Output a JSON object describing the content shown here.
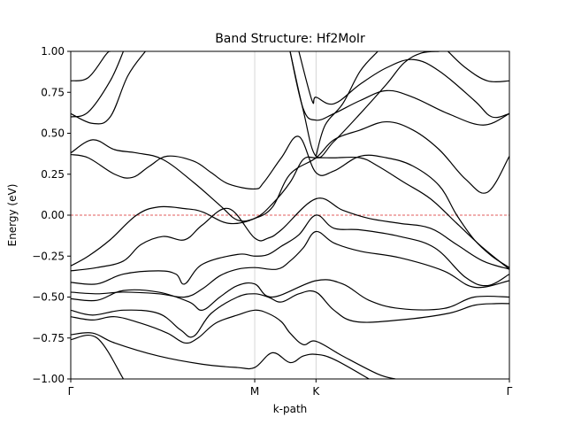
{
  "chart_data": {
    "type": "line",
    "title": "Band Structure: Hf2MoIr",
    "xlabel": "k-path",
    "ylabel": "Energy (eV)",
    "ylim": [
      -1.0,
      1.0
    ],
    "xlim": [
      0,
      1
    ],
    "y_ticks": [
      -1.0,
      -0.75,
      -0.5,
      -0.25,
      0.0,
      0.25,
      0.5,
      0.75,
      1.0
    ],
    "y_tick_labels": [
      "−1.00",
      "−0.75",
      "−0.50",
      "−0.25",
      "0.00",
      "0.25",
      "0.50",
      "0.75",
      "1.00"
    ],
    "kpoints": [
      {
        "label": "Γ",
        "x": 0.0
      },
      {
        "label": "M",
        "x": 0.4194
      },
      {
        "label": "K",
        "x": 0.5591
      },
      {
        "label": "Γ",
        "x": 1.0
      }
    ],
    "fermi_level": 0.0,
    "fermi_color": "#d62728",
    "line_color": "#000000",
    "vline_color": "#cccccc",
    "series": [
      {
        "values": [
          [
            0.0,
            -0.76
          ],
          [
            0.06,
            -0.75
          ],
          [
            0.12,
            -1.0
          ]
        ]
      },
      {
        "values": [
          [
            0.0,
            -0.73
          ],
          [
            0.05,
            -0.72
          ],
          [
            0.1,
            -0.78
          ],
          [
            0.2,
            -0.86
          ],
          [
            0.3,
            -0.91
          ],
          [
            0.38,
            -0.93
          ],
          [
            0.4194,
            -0.93
          ],
          [
            0.46,
            -0.84
          ],
          [
            0.5,
            -0.9
          ],
          [
            0.53,
            -0.86
          ],
          [
            0.5591,
            -0.85
          ],
          [
            0.6,
            -0.88
          ],
          [
            0.68,
            -1.0
          ]
        ]
      },
      {
        "values": [
          [
            0.0,
            -0.62
          ],
          [
            0.05,
            -0.64
          ],
          [
            0.1,
            -0.62
          ],
          [
            0.16,
            -0.66
          ],
          [
            0.22,
            -0.72
          ],
          [
            0.26,
            -0.78
          ],
          [
            0.29,
            -0.75
          ],
          [
            0.33,
            -0.66
          ],
          [
            0.38,
            -0.61
          ],
          [
            0.4194,
            -0.58
          ],
          [
            0.45,
            -0.6
          ],
          [
            0.48,
            -0.65
          ],
          [
            0.5,
            -0.72
          ],
          [
            0.53,
            -0.79
          ],
          [
            0.5591,
            -0.77
          ],
          [
            0.62,
            -0.86
          ],
          [
            0.7,
            -0.97
          ],
          [
            0.74,
            -1.0
          ]
        ]
      },
      {
        "values": [
          [
            0.0,
            -0.58
          ],
          [
            0.05,
            -0.61
          ],
          [
            0.12,
            -0.58
          ],
          [
            0.2,
            -0.6
          ],
          [
            0.25,
            -0.7
          ],
          [
            0.28,
            -0.74
          ],
          [
            0.32,
            -0.6
          ],
          [
            0.38,
            -0.5
          ],
          [
            0.4194,
            -0.48
          ],
          [
            0.45,
            -0.5
          ],
          [
            0.48,
            -0.53
          ],
          [
            0.52,
            -0.48
          ],
          [
            0.5591,
            -0.47
          ],
          [
            0.6,
            -0.58
          ],
          [
            0.65,
            -0.65
          ],
          [
            0.75,
            -0.64
          ],
          [
            0.86,
            -0.6
          ],
          [
            0.92,
            -0.55
          ],
          [
            0.97,
            -0.54
          ],
          [
            1.0,
            -0.54
          ]
        ]
      },
      {
        "values": [
          [
            0.0,
            -0.51
          ],
          [
            0.06,
            -0.52
          ],
          [
            0.12,
            -0.46
          ],
          [
            0.2,
            -0.47
          ],
          [
            0.27,
            -0.53
          ],
          [
            0.3,
            -0.58
          ],
          [
            0.34,
            -0.5
          ],
          [
            0.38,
            -0.43
          ],
          [
            0.4194,
            -0.42
          ],
          [
            0.46,
            -0.5
          ],
          [
            0.5591,
            -0.4
          ],
          [
            0.62,
            -0.42
          ],
          [
            0.68,
            -0.52
          ],
          [
            0.75,
            -0.57
          ],
          [
            0.85,
            -0.57
          ],
          [
            0.92,
            -0.5
          ],
          [
            1.0,
            -0.5
          ]
        ]
      },
      {
        "values": [
          [
            0.0,
            -0.47
          ],
          [
            0.06,
            -0.48
          ],
          [
            0.12,
            -0.47
          ],
          [
            0.2,
            -0.48
          ],
          [
            0.26,
            -0.5
          ],
          [
            0.3,
            -0.45
          ],
          [
            0.34,
            -0.37
          ],
          [
            0.38,
            -0.33
          ],
          [
            0.4194,
            -0.32
          ],
          [
            0.47,
            -0.33
          ],
          [
            0.5,
            -0.28
          ],
          [
            0.53,
            -0.2
          ],
          [
            0.5591,
            -0.1
          ],
          [
            0.6,
            -0.17
          ],
          [
            0.66,
            -0.22
          ],
          [
            0.75,
            -0.26
          ],
          [
            0.85,
            -0.34
          ],
          [
            0.92,
            -0.44
          ],
          [
            1.0,
            -0.4
          ]
        ]
      },
      {
        "values": [
          [
            0.0,
            -0.41
          ],
          [
            0.06,
            -0.42
          ],
          [
            0.12,
            -0.36
          ],
          [
            0.2,
            -0.34
          ],
          [
            0.24,
            -0.36
          ],
          [
            0.26,
            -0.42
          ],
          [
            0.3,
            -0.3
          ],
          [
            0.38,
            -0.24
          ],
          [
            0.4194,
            -0.25
          ],
          [
            0.45,
            -0.24
          ],
          [
            0.48,
            -0.19
          ],
          [
            0.52,
            -0.12
          ],
          [
            0.5591,
            0.0
          ],
          [
            0.6,
            -0.08
          ],
          [
            0.66,
            -0.09
          ],
          [
            0.75,
            -0.13
          ],
          [
            0.83,
            -0.2
          ],
          [
            0.9,
            -0.38
          ],
          [
            0.95,
            -0.43
          ],
          [
            1.0,
            -0.36
          ]
        ]
      },
      {
        "values": [
          [
            0.0,
            -0.34
          ],
          [
            0.06,
            -0.32
          ],
          [
            0.12,
            -0.28
          ],
          [
            0.16,
            -0.18
          ],
          [
            0.21,
            -0.13
          ],
          [
            0.26,
            -0.15
          ],
          [
            0.3,
            -0.06
          ],
          [
            0.36,
            0.04
          ],
          [
            0.4194,
            -0.14
          ],
          [
            0.45,
            -0.14
          ],
          [
            0.48,
            -0.09
          ],
          [
            0.5591,
            0.1
          ],
          [
            0.62,
            0.03
          ],
          [
            0.68,
            -0.02
          ],
          [
            0.75,
            -0.05
          ],
          [
            0.82,
            -0.08
          ],
          [
            0.88,
            -0.18
          ],
          [
            0.94,
            -0.28
          ],
          [
            1.0,
            -0.33
          ]
        ]
      },
      {
        "values": [
          [
            0.0,
            -0.31
          ],
          [
            0.04,
            -0.25
          ],
          [
            0.09,
            -0.15
          ],
          [
            0.15,
            0.0
          ],
          [
            0.2,
            0.05
          ],
          [
            0.26,
            0.04
          ],
          [
            0.3,
            0.02
          ],
          [
            0.36,
            -0.05
          ],
          [
            0.4194,
            -0.02
          ],
          [
            0.46,
            0.07
          ],
          [
            0.5,
            0.2
          ],
          [
            0.53,
            0.34
          ],
          [
            0.5591,
            0.35
          ],
          [
            0.6,
            0.35
          ],
          [
            0.66,
            0.35
          ],
          [
            0.7,
            0.3
          ],
          [
            0.76,
            0.2
          ],
          [
            0.82,
            0.1
          ],
          [
            0.88,
            -0.05
          ],
          [
            0.94,
            -0.2
          ],
          [
            1.0,
            -0.33
          ]
        ]
      },
      {
        "values": [
          [
            0.0,
            0.37
          ],
          [
            0.04,
            0.35
          ],
          [
            0.1,
            0.25
          ],
          [
            0.14,
            0.23
          ],
          [
            0.18,
            0.3
          ],
          [
            0.22,
            0.36
          ],
          [
            0.28,
            0.33
          ],
          [
            0.32,
            0.26
          ],
          [
            0.36,
            0.19
          ],
          [
            0.4194,
            0.16
          ],
          [
            0.44,
            0.2
          ],
          [
            0.48,
            0.35
          ],
          [
            0.52,
            0.48
          ],
          [
            0.5591,
            0.26
          ],
          [
            0.6,
            0.27
          ],
          [
            0.66,
            0.36
          ],
          [
            0.72,
            0.35
          ],
          [
            0.78,
            0.3
          ],
          [
            0.84,
            0.18
          ],
          [
            0.88,
            0.0
          ],
          [
            0.92,
            -0.15
          ],
          [
            0.96,
            -0.25
          ],
          [
            1.0,
            -0.32
          ]
        ]
      },
      {
        "values": [
          [
            0.0,
            0.38
          ],
          [
            0.05,
            0.46
          ],
          [
            0.1,
            0.4
          ],
          [
            0.15,
            0.38
          ],
          [
            0.21,
            0.34
          ],
          [
            0.28,
            0.2
          ],
          [
            0.34,
            0.06
          ],
          [
            0.38,
            -0.03
          ],
          [
            0.4194,
            -0.02
          ],
          [
            0.46,
            0.05
          ],
          [
            0.5,
            0.25
          ],
          [
            0.5591,
            0.35
          ],
          [
            0.6,
            0.46
          ],
          [
            0.66,
            0.52
          ],
          [
            0.72,
            0.57
          ],
          [
            0.78,
            0.52
          ],
          [
            0.84,
            0.4
          ],
          [
            0.9,
            0.22
          ],
          [
            0.95,
            0.14
          ],
          [
            1.0,
            0.36
          ]
        ]
      },
      {
        "values": [
          [
            0.0,
            0.6
          ],
          [
            0.04,
            0.63
          ],
          [
            0.09,
            0.82
          ],
          [
            0.12,
            1.0
          ]
        ]
      },
      {
        "values": [
          [
            0.0,
            0.82
          ],
          [
            0.04,
            0.84
          ],
          [
            0.08,
            0.98
          ],
          [
            0.09,
            1.0
          ]
        ]
      },
      {
        "values": [
          [
            0.0,
            0.62
          ],
          [
            0.05,
            0.56
          ],
          [
            0.09,
            0.6
          ],
          [
            0.13,
            0.85
          ],
          [
            0.17,
            1.0
          ]
        ]
      },
      {
        "values": [
          [
            0.5,
            1.0
          ],
          [
            0.53,
            0.65
          ],
          [
            0.5591,
            0.58
          ],
          [
            0.6,
            0.62
          ],
          [
            0.66,
            0.7
          ],
          [
            0.72,
            0.76
          ],
          [
            0.78,
            0.72
          ],
          [
            0.86,
            0.62
          ],
          [
            0.94,
            0.55
          ],
          [
            1.0,
            0.62
          ]
        ]
      },
      {
        "values": [
          [
            0.52,
            1.0
          ],
          [
            0.55,
            0.7
          ],
          [
            0.5591,
            0.72
          ],
          [
            0.6,
            0.68
          ],
          [
            0.66,
            0.8
          ],
          [
            0.72,
            0.9
          ],
          [
            0.78,
            0.95
          ],
          [
            0.84,
            0.88
          ],
          [
            0.92,
            0.7
          ],
          [
            0.96,
            0.6
          ],
          [
            1.0,
            0.62
          ]
        ]
      },
      {
        "values": [
          [
            0.5,
            1.0
          ],
          [
            0.53,
            0.64
          ],
          [
            0.5591,
            0.36
          ],
          [
            0.6,
            0.45
          ],
          [
            0.66,
            0.62
          ],
          [
            0.72,
            0.8
          ],
          [
            0.76,
            0.93
          ],
          [
            0.8,
            0.99
          ],
          [
            0.84,
            1.0
          ]
        ]
      },
      {
        "values": [
          [
            0.5591,
            0.36
          ],
          [
            0.58,
            0.55
          ],
          [
            0.62,
            0.68
          ],
          [
            0.66,
            0.88
          ],
          [
            0.7,
            1.0
          ]
        ]
      },
      {
        "values": [
          [
            0.86,
            1.0
          ],
          [
            0.9,
            0.9
          ],
          [
            0.95,
            0.82
          ],
          [
            1.0,
            0.82
          ]
        ]
      }
    ]
  }
}
